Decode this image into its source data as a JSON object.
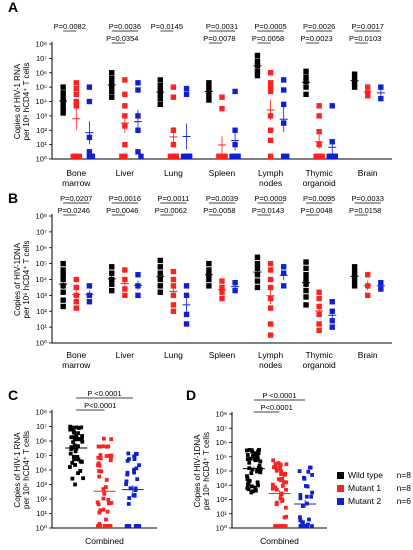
{
  "colors": {
    "wild_type": "#000000",
    "mutant_1": "#ff2020",
    "mutant_2": "#1020d0"
  },
  "legend": [
    {
      "label": "Wild type",
      "n": "n=8",
      "color": "#000000"
    },
    {
      "label": "Mutant 1",
      "n": "n=8",
      "color": "#ff2020"
    },
    {
      "label": "Mutant 2",
      "n": "n=6",
      "color": "#1020d0"
    }
  ],
  "chart_data": [
    {
      "panel": "A",
      "type": "scatter",
      "ylabel_lines": [
        "Copies of HIV-1 RNA",
        "per 10⁶ hCD4⁺ T cells"
      ],
      "yscale": "log",
      "ylim_exp": [
        0,
        8
      ],
      "tick_labels": [
        "10⁰",
        "10¹",
        "10²",
        "10³",
        "10⁴",
        "10⁵",
        "10⁶",
        "10⁷",
        "10⁸"
      ],
      "categories": [
        [
          "Bone",
          "marrow"
        ],
        [
          "Liver"
        ],
        [
          "Lung"
        ],
        [
          "Spleen"
        ],
        [
          "Lymph",
          "nodes"
        ],
        [
          "Thymic",
          "organoid"
        ],
        [
          "Brain"
        ]
      ],
      "series": [
        "Wild type",
        "Mutant 1",
        "Mutant 2"
      ],
      "points_log10": [
        [
          [
            5.0,
            4.6,
            4.3,
            4.0,
            3.7,
            3.4,
            3.2
          ],
          [
            5.3,
            4.9,
            4.5,
            4.0,
            3.7,
            0,
            0,
            0
          ],
          [
            5.0,
            4.0,
            1.5,
            0.5,
            0,
            0
          ]
        ],
        [
          [
            6.0,
            5.6,
            5.3,
            5.0,
            4.7,
            4.3
          ],
          [
            5.5,
            4.5,
            3.7,
            3.0,
            2.3,
            1.0,
            0,
            0
          ],
          [
            5.3,
            4.8,
            3.0,
            2.0,
            0.5,
            0
          ]
        ],
        [
          [
            5.5,
            5.1,
            4.8,
            4.5,
            4.2,
            3.8
          ],
          [
            5.0,
            4.3,
            2.0,
            1.0,
            0,
            0,
            0,
            0
          ],
          [
            4.9,
            4.5,
            0,
            0,
            0,
            0
          ]
        ],
        [
          [
            5.3,
            5.0,
            4.7,
            4.4,
            4.1
          ],
          [
            4.3,
            3.5,
            0,
            0,
            0,
            0,
            0,
            0
          ],
          [
            4.7,
            2.0,
            1.0,
            0,
            0,
            0
          ]
        ],
        [
          [
            7.2,
            6.8,
            6.5,
            6.1,
            5.8
          ],
          [
            6.0,
            5.3,
            5.0,
            4.7,
            3.0,
            2.0,
            1.3,
            0
          ],
          [
            5.5,
            4.8,
            3.8,
            2.5,
            0,
            0
          ]
        ],
        [
          [
            6.1,
            5.7,
            5.4,
            5.0,
            4.5
          ],
          [
            3.7,
            3.0,
            1.9,
            1.0,
            0,
            0,
            0,
            0
          ],
          [
            3.7,
            1.2,
            0,
            0,
            0,
            0
          ]
        ],
        [
          [
            5.9,
            5.6,
            5.3,
            5.0
          ],
          [
            5.0,
            4.6,
            4.4
          ],
          [
            5.0,
            4.2
          ]
        ]
      ],
      "p_values": [
        [
          "P=0.0082",
          ""
        ],
        [
          "P=0.0036",
          "P=0.0354"
        ],
        [
          "P=0.0145",
          ""
        ],
        [
          "P=0.0031",
          "P=0.0078"
        ],
        [
          "P=0.0005",
          "P=0.0058"
        ],
        [
          "P=0.0026",
          "P=0.0023"
        ],
        [
          "P=0.0017",
          "P=0.0103"
        ]
      ]
    },
    {
      "panel": "B",
      "type": "scatter",
      "ylabel_lines": [
        "Copies of HIV-1DNA",
        "per 10⁶ hCD4⁺ T cells"
      ],
      "yscale": "log",
      "ylim_exp": [
        0,
        8
      ],
      "tick_labels": [
        "10⁰",
        "10¹",
        "10²",
        "10³",
        "10⁴",
        "10⁵",
        "10⁶",
        "10⁷",
        "10⁸"
      ],
      "categories": [
        [
          "Bone",
          "marrow"
        ],
        [
          "Liver"
        ],
        [
          "Lung"
        ],
        [
          "Spleen"
        ],
        [
          "Lymph",
          "nodes"
        ],
        [
          "Thymic",
          "organoid"
        ],
        [
          "Brain"
        ]
      ],
      "series": [
        "Wild type",
        "Mutant 1",
        "Mutant 2"
      ],
      "points_log10": [
        [
          [
            5.0,
            4.6,
            4.3,
            4.0,
            3.6,
            3.2,
            2.7,
            2.3
          ],
          [
            4.0,
            3.5,
            3.0,
            2.6,
            2.2
          ],
          [
            3.6,
            3.0,
            2.6
          ]
        ],
        [
          [
            4.8,
            4.4,
            4.0,
            3.7,
            3.3
          ],
          [
            4.6,
            4.0,
            3.4,
            3.0
          ],
          [
            4.3,
            3.6,
            3.0
          ]
        ],
        [
          [
            5.2,
            4.8,
            4.4,
            4.0,
            3.6,
            3.2
          ],
          [
            4.5,
            4.0,
            3.6,
            3.0,
            2.4,
            2.0
          ],
          [
            3.6,
            3.0,
            1.8,
            1.2
          ]
        ],
        [
          [
            5.0,
            4.6,
            4.3,
            4.0,
            3.6
          ],
          [
            3.9,
            3.5,
            3.2,
            2.8
          ],
          [
            3.8,
            3.3
          ]
        ],
        [
          [
            5.4,
            5.0,
            4.7,
            4.3,
            3.9,
            3.5
          ],
          [
            5.0,
            4.6,
            4.0,
            3.5,
            2.8,
            2.2,
            1.2,
            0.5
          ],
          [
            4.8,
            4.4,
            3.6
          ]
        ],
        [
          [
            5.1,
            4.7,
            4.3,
            4.0,
            3.7,
            3.3,
            2.9,
            2.4
          ],
          [
            3.2,
            2.8,
            2.3,
            1.8,
            1.2,
            0.8
          ],
          [
            2.6,
            2.0,
            1.4,
            1.0
          ]
        ],
        [
          [
            4.8,
            4.5,
            4.2,
            3.9,
            3.6
          ],
          [
            4.3,
            3.6,
            3.0
          ],
          [
            3.8,
            3.4
          ]
        ]
      ],
      "p_values": [
        [
          "P=0.0207",
          "P=0.0246"
        ],
        [
          "P=0.0016",
          "P=0.0046"
        ],
        [
          "P=0.0011",
          "P=0.0062"
        ],
        [
          "P=0.0039",
          "P=0.0058"
        ],
        [
          "P=0.0009",
          "P=0.0143"
        ],
        [
          "P=0.0095",
          "P=0.0048"
        ],
        [
          "P=0.0033",
          "P=0.0158"
        ]
      ]
    },
    {
      "panel": "C",
      "type": "scatter",
      "ylabel_lines": [
        "Copies of HIV-1 RNA",
        "per 10⁶ hCD4⁺ T cells"
      ],
      "yscale": "log",
      "ylim_exp": [
        0,
        8
      ],
      "tick_labels": [
        "10⁰",
        "10¹",
        "10²",
        "10³",
        "10⁴",
        "10⁵",
        "10⁶",
        "10⁷",
        "10⁸"
      ],
      "categories": [
        [
          "Combined"
        ]
      ],
      "series": [
        "Wild type",
        "Mutant 1",
        "Mutant 2"
      ],
      "spread": [
        [
          3.0,
          7.2
        ],
        [
          0,
          6.2
        ],
        [
          0,
          5.3
        ]
      ],
      "counts": [
        46,
        52,
        36
      ],
      "p_values": [
        [
          "P <0.0001",
          "P<0.0001"
        ]
      ]
    },
    {
      "panel": "D",
      "type": "scatter",
      "ylabel_lines": [
        "Copies of HIV-1DNA",
        "per 10⁶ hCD4⁺ T cells"
      ],
      "yscale": "log",
      "ylim_exp": [
        0,
        8
      ],
      "tick_labels": [
        "10⁰",
        "10¹",
        "10²",
        "10³",
        "10⁴",
        "10⁵",
        "10⁶",
        "10⁷",
        "10⁸"
      ],
      "categories": [
        [
          "Combined"
        ]
      ],
      "series": [
        "Wild type",
        "Mutant 1",
        "Mutant 2"
      ],
      "spread": [
        [
          2.3,
          5.6
        ],
        [
          0,
          5.0
        ],
        [
          0,
          4.3
        ]
      ],
      "counts": [
        46,
        48,
        30
      ],
      "p_values": [
        [
          "P <0.0001",
          "P<0.0001"
        ]
      ]
    }
  ]
}
